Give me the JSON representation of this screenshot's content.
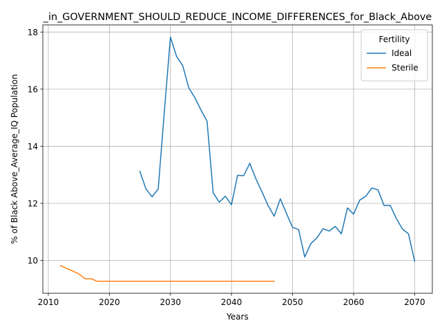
{
  "chart_data": {
    "type": "line",
    "title": "_in_GOVERNMENT_SHOULD_REDUCE_INCOME_DIFFERENCES_for_Black_Above",
    "xlabel": "Years",
    "ylabel": "% of Black Above_Average_IQ Population",
    "xlim": [
      2009.1,
      2072.9
    ],
    "ylim": [
      8.85,
      18.25
    ],
    "x_ticks": [
      2010,
      2020,
      2030,
      2040,
      2050,
      2060,
      2070
    ],
    "y_ticks": [
      10,
      12,
      14,
      16,
      18
    ],
    "grid": true,
    "legend": {
      "title": "Fertility",
      "placement": "top-right"
    },
    "series": [
      {
        "name": "Ideal",
        "color": "#1f77b4",
        "x": [
          2025,
          2026,
          2027,
          2028,
          2029,
          2030,
          2031,
          2032,
          2033,
          2034,
          2035,
          2036,
          2037,
          2038,
          2039,
          2040,
          2041,
          2042,
          2043,
          2044,
          2045,
          2046,
          2047,
          2048,
          2049,
          2050,
          2051,
          2052,
          2053,
          2054,
          2055,
          2056,
          2057,
          2058,
          2059,
          2060,
          2061,
          2062,
          2063,
          2064,
          2065,
          2066,
          2067,
          2068,
          2069,
          2070
        ],
        "values": [
          13.12,
          12.5,
          12.23,
          12.5,
          15.2,
          17.82,
          17.15,
          16.83,
          16.05,
          15.7,
          15.27,
          14.88,
          12.37,
          12.04,
          12.25,
          11.95,
          12.98,
          12.97,
          13.4,
          12.86,
          12.4,
          11.92,
          11.55,
          12.16,
          11.65,
          11.16,
          11.08,
          10.12,
          10.59,
          10.79,
          11.11,
          11.03,
          11.19,
          10.93,
          11.84,
          11.62,
          12.11,
          12.25,
          12.54,
          12.47,
          11.92,
          11.93,
          11.47,
          11.1,
          10.93,
          9.97
        ]
      },
      {
        "name": "Sterile",
        "color": "#ff7f0e",
        "x": [
          2012,
          2013,
          2014,
          2015,
          2016,
          2017,
          2018,
          2019,
          2020,
          2021,
          2022,
          2023,
          2024,
          2025,
          2026,
          2027,
          2028,
          2029,
          2030,
          2031,
          2032,
          2033,
          2034,
          2035,
          2036,
          2037,
          2038,
          2039,
          2040,
          2041,
          2042,
          2043,
          2044,
          2045,
          2046,
          2047
        ],
        "values": [
          9.82,
          9.72,
          9.63,
          9.53,
          9.36,
          9.36,
          9.27,
          9.27,
          9.27,
          9.27,
          9.27,
          9.27,
          9.27,
          9.27,
          9.27,
          9.27,
          9.27,
          9.27,
          9.27,
          9.27,
          9.27,
          9.27,
          9.27,
          9.27,
          9.27,
          9.27,
          9.27,
          9.27,
          9.27,
          9.27,
          9.27,
          9.27,
          9.27,
          9.27,
          9.27,
          9.27
        ]
      }
    ]
  }
}
